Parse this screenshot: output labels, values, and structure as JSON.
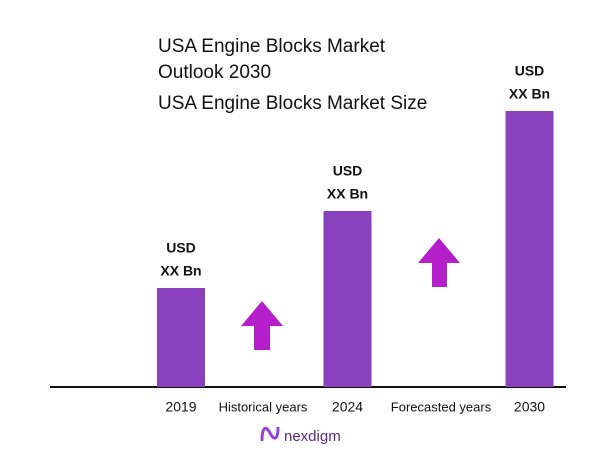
{
  "chart_data": {
    "type": "bar",
    "title": "USA Engine Blocks Market Outlook 2030",
    "subtitle": "USA Engine Blocks Market Size",
    "categories": [
      "2019",
      "2024",
      "2030"
    ],
    "values": [
      99,
      176,
      276
    ],
    "value_labels": [
      [
        "USD",
        "XX Bn"
      ],
      [
        "USD",
        "XX Bn"
      ],
      [
        "USD",
        "XX Bn"
      ]
    ],
    "color": "#8a41be",
    "annotations": [
      "Historical years",
      "Forecasted years"
    ],
    "grid": false
  },
  "logo": "nexdigm"
}
